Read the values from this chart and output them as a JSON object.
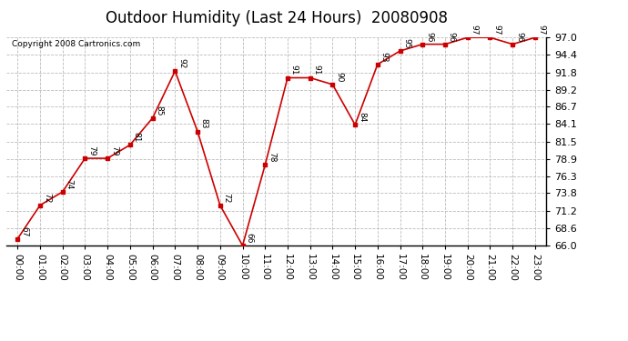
{
  "title": "Outdoor Humidity (Last 24 Hours)  20080908",
  "copyright": "Copyright 2008 Cartronics.com",
  "x_labels": [
    "00:00",
    "01:00",
    "02:00",
    "03:00",
    "04:00",
    "05:00",
    "06:00",
    "07:00",
    "08:00",
    "09:00",
    "10:00",
    "11:00",
    "12:00",
    "13:00",
    "14:00",
    "15:00",
    "16:00",
    "17:00",
    "18:00",
    "19:00",
    "20:00",
    "21:00",
    "22:00",
    "23:00"
  ],
  "y_values": [
    67,
    72,
    74,
    79,
    79,
    81,
    85,
    92,
    83,
    72,
    66,
    78,
    91,
    91,
    90,
    84,
    93,
    95,
    96,
    96,
    97,
    97,
    96,
    97
  ],
  "y_labels": [
    "66.0",
    "68.6",
    "71.2",
    "73.8",
    "76.3",
    "78.9",
    "81.5",
    "84.1",
    "86.7",
    "89.2",
    "91.8",
    "94.4",
    "97.0"
  ],
  "y_ticks": [
    66.0,
    68.6,
    71.2,
    73.8,
    76.3,
    78.9,
    81.5,
    84.1,
    86.7,
    89.2,
    91.8,
    94.4,
    97.0
  ],
  "ylim": [
    66.0,
    97.0
  ],
  "line_color": "#cc0000",
  "marker_color": "#cc0000",
  "bg_color": "#ffffff",
  "grid_color": "#bbbbbb",
  "title_fontsize": 12,
  "copyright_fontsize": 6.5,
  "label_fontsize": 6.5,
  "tick_fontsize": 7.5,
  "ytick_fontsize": 8
}
